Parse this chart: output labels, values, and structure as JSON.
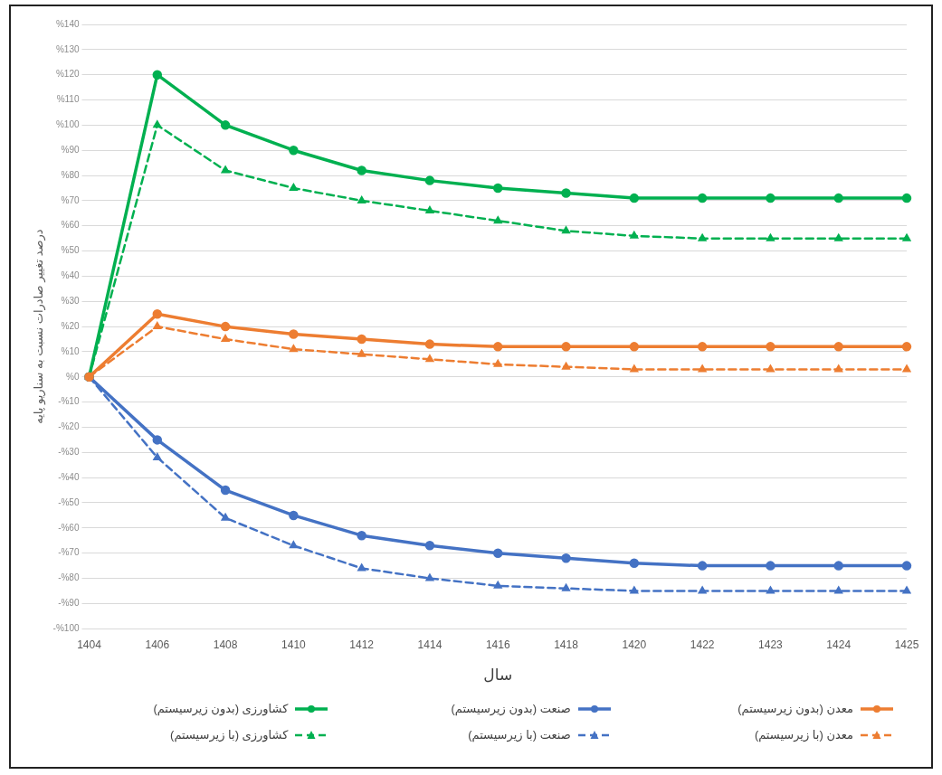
{
  "chart_data": {
    "type": "line",
    "xlabel": "سال",
    "ylabel": "درصد تغییر صادرات نسبت به سناریو پایه",
    "categories": [
      "1404",
      "1406",
      "1408",
      "1410",
      "1412",
      "1414",
      "1416",
      "1418",
      "1420",
      "1422",
      "1423",
      "1424",
      "1425"
    ],
    "ylim": [
      -100,
      140
    ],
    "yticks": [
      {
        "value": -100,
        "label": "-%100"
      },
      {
        "value": -90,
        "label": "-%90"
      },
      {
        "value": -80,
        "label": "-%80"
      },
      {
        "value": -70,
        "label": "-%70"
      },
      {
        "value": -60,
        "label": "-%60"
      },
      {
        "value": -50,
        "label": "-%50"
      },
      {
        "value": -40,
        "label": "-%40"
      },
      {
        "value": -30,
        "label": "-%30"
      },
      {
        "value": -20,
        "label": "-%20"
      },
      {
        "value": -10,
        "label": "-%10"
      },
      {
        "value": 0,
        "label": "%0"
      },
      {
        "value": 10,
        "label": "%10"
      },
      {
        "value": 20,
        "label": "%20"
      },
      {
        "value": 30,
        "label": "%30"
      },
      {
        "value": 40,
        "label": "%40"
      },
      {
        "value": 50,
        "label": "%50"
      },
      {
        "value": 60,
        "label": "%60"
      },
      {
        "value": 70,
        "label": "%70"
      },
      {
        "value": 80,
        "label": "%80"
      },
      {
        "value": 90,
        "label": "%90"
      },
      {
        "value": 100,
        "label": "%100"
      },
      {
        "value": 110,
        "label": "%110"
      },
      {
        "value": 120,
        "label": "%120"
      },
      {
        "value": 130,
        "label": "%130"
      },
      {
        "value": 140,
        "label": "%140"
      }
    ],
    "grid": "y",
    "legend": "bottom",
    "series": [
      {
        "name": "معدن (بدون زیرسیستم)",
        "color": "#ed7d31",
        "marker": "circle",
        "line_style": "solid",
        "values": [
          0,
          25,
          20,
          17,
          15,
          13,
          12,
          12,
          12,
          12,
          12,
          12,
          12
        ]
      },
      {
        "name": "صنعت (بدون زیرسیستم)",
        "color": "#4472c4",
        "marker": "circle",
        "line_style": "solid",
        "values": [
          0,
          -25,
          -45,
          -55,
          -63,
          -67,
          -70,
          -72,
          -74,
          -75,
          -75,
          -75,
          -75
        ]
      },
      {
        "name": "کشاورزی (بدون زیرسیستم)",
        "color": "#00b050",
        "marker": "circle",
        "line_style": "solid",
        "values": [
          0,
          120,
          100,
          90,
          82,
          78,
          75,
          73,
          71,
          71,
          71,
          71,
          71
        ]
      },
      {
        "name": "معدن (با زیرسیستم)",
        "color": "#ed7d31",
        "marker": "triangle",
        "line_style": "dashed",
        "values": [
          0,
          20,
          15,
          11,
          9,
          7,
          5,
          4,
          3,
          3,
          3,
          3,
          3
        ]
      },
      {
        "name": "صنعت (با زیرسیستم)",
        "color": "#4472c4",
        "marker": "triangle",
        "line_style": "dashed",
        "values": [
          0,
          -32,
          -56,
          -67,
          -76,
          -80,
          -83,
          -84,
          -85,
          -85,
          -85,
          -85,
          -85
        ]
      },
      {
        "name": "کشاورزی (با زیرسیستم)",
        "color": "#00b050",
        "marker": "triangle",
        "line_style": "dashed",
        "values": [
          0,
          100,
          82,
          75,
          70,
          66,
          62,
          58,
          56,
          55,
          55,
          55,
          55
        ]
      }
    ]
  }
}
